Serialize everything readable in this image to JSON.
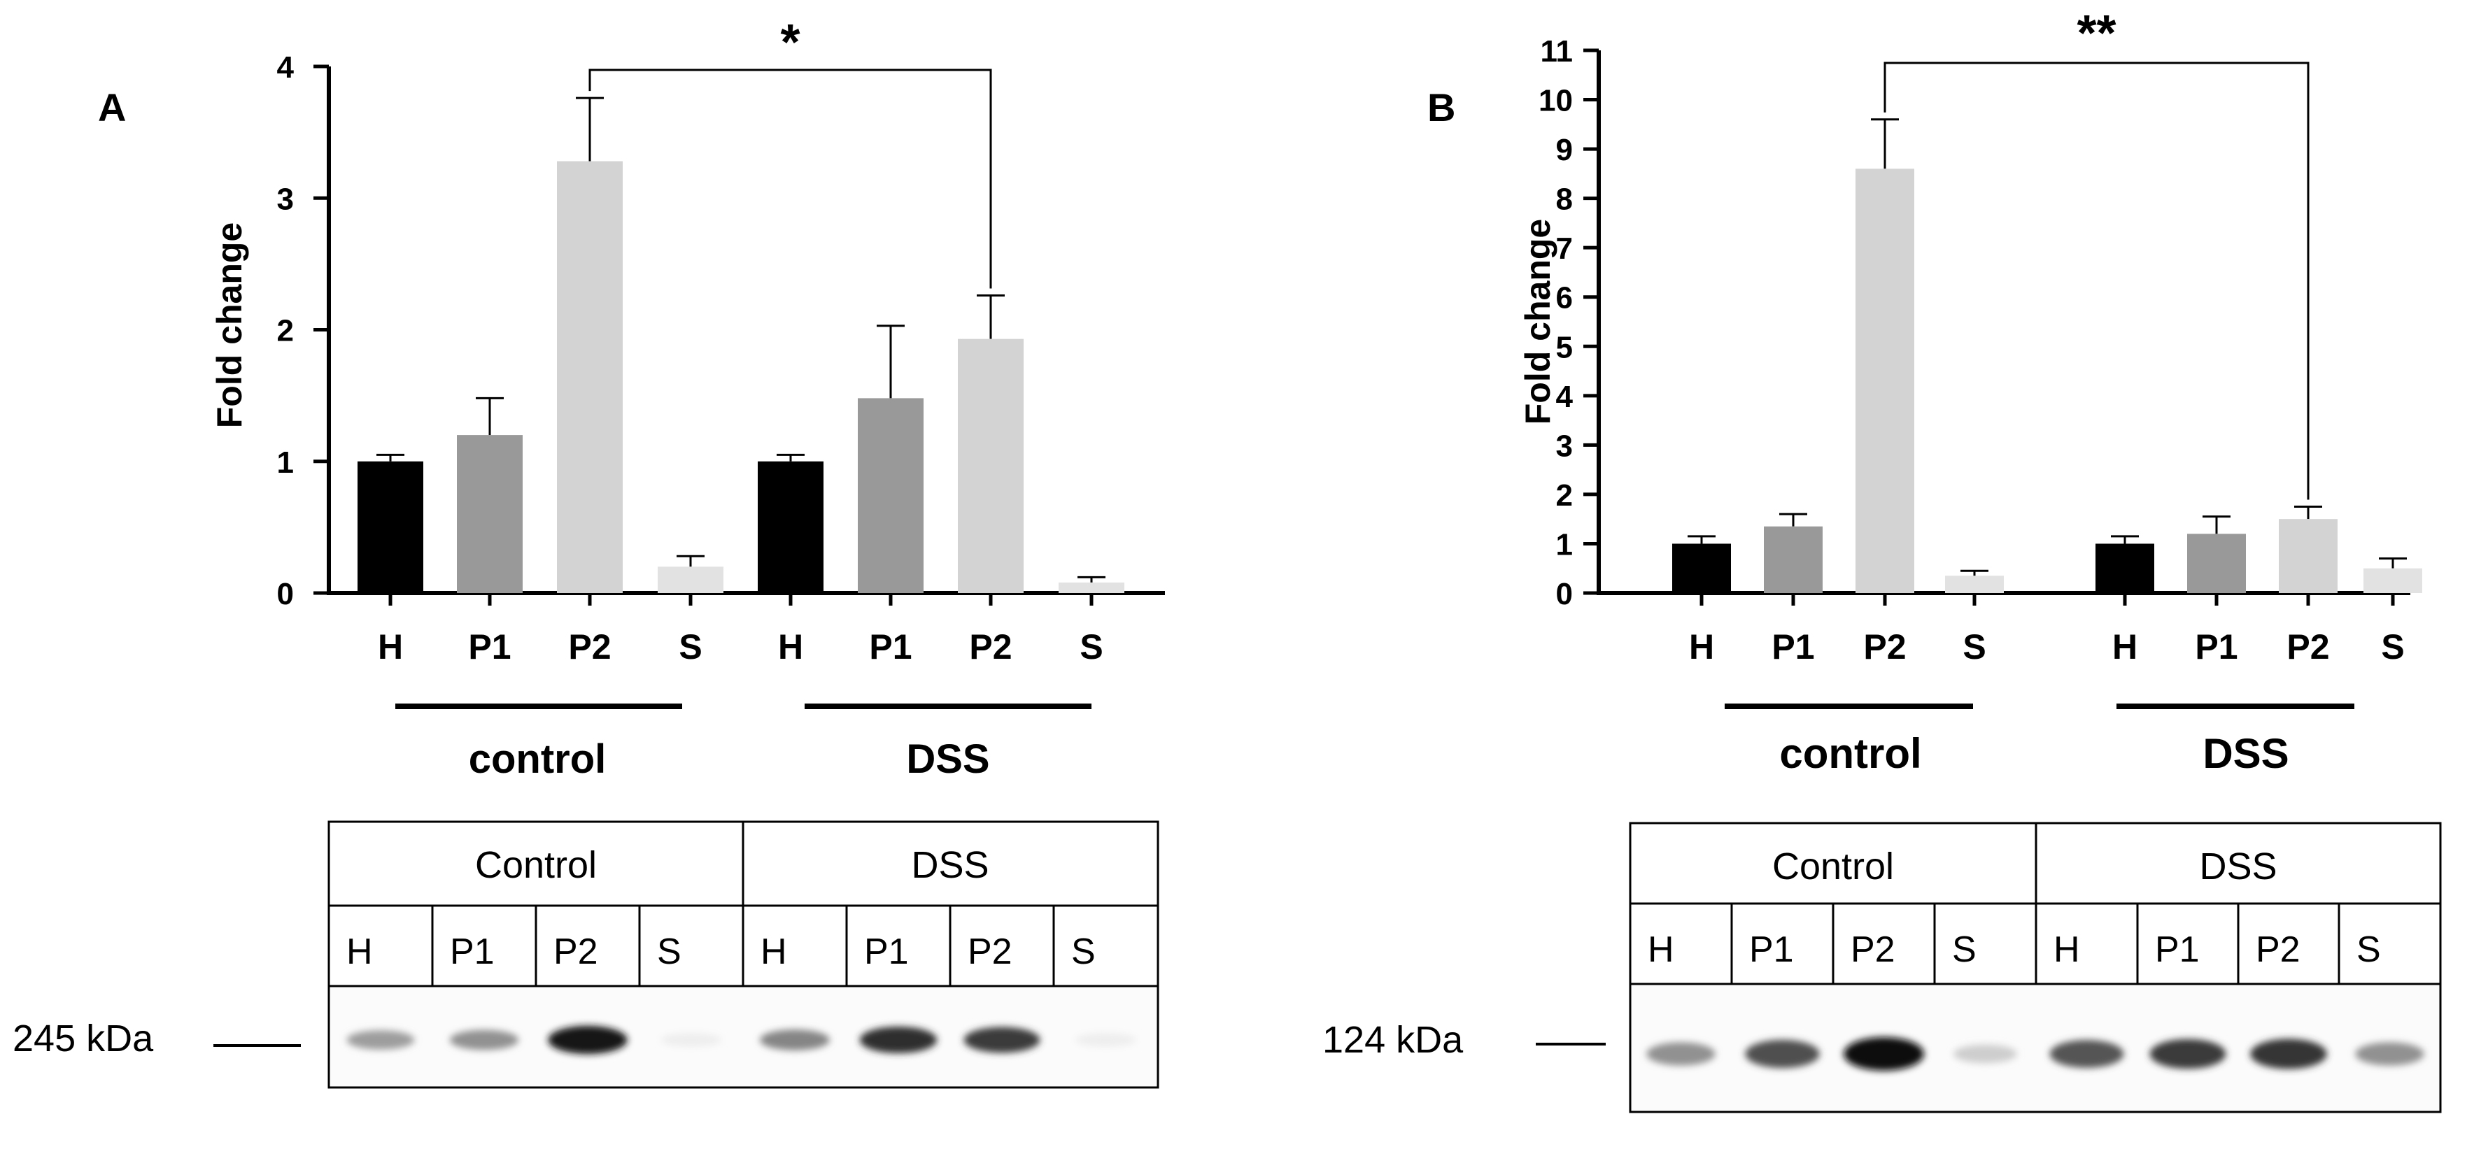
{
  "chart_data": [
    {
      "type": "bar",
      "panel_label": "A",
      "ylabel": "Fold change",
      "ylim": [
        0,
        4
      ],
      "yticks": [
        "0",
        "1",
        "2",
        "3",
        "4"
      ],
      "categories": [
        "H",
        "P1",
        "P2",
        "S",
        "H",
        "P1",
        "P2",
        "S"
      ],
      "values": [
        1.0,
        1.2,
        3.28,
        0.2,
        1.0,
        1.48,
        1.93,
        0.08
      ],
      "errors": [
        0.05,
        0.28,
        0.48,
        0.08,
        0.05,
        0.55,
        0.33,
        0.04
      ],
      "bar_colors": [
        "#000000",
        "#999999",
        "#d3d3d3",
        "#e2e2e2",
        "#000000",
        "#999999",
        "#d3d3d3",
        "#e2e2e2"
      ],
      "groups": [
        "control",
        "DSS"
      ],
      "significance": {
        "label": "*",
        "from_index": 2,
        "to_index": 6
      },
      "grid": false,
      "blot": {
        "group_headers": [
          "Control",
          "DSS"
        ],
        "lanes": [
          "H",
          "P1",
          "P2",
          "S",
          "H",
          "P1",
          "P2",
          "S"
        ],
        "marker": "245 kDa",
        "band_intensity": [
          0.4,
          0.45,
          0.95,
          0.07,
          0.5,
          0.85,
          0.8,
          0.07
        ]
      }
    },
    {
      "type": "bar",
      "panel_label": "B",
      "ylabel": "Fold change",
      "ylim": [
        0,
        11
      ],
      "yticks": [
        "0",
        "1",
        "2",
        "3",
        "4",
        "5",
        "6",
        "7",
        "8",
        "9",
        "10",
        "11"
      ],
      "categories": [
        "H",
        "P1",
        "P2",
        "S",
        "H",
        "P1",
        "P2",
        "S"
      ],
      "values": [
        1.0,
        1.35,
        8.6,
        0.35,
        1.0,
        1.2,
        1.5,
        0.5
      ],
      "errors": [
        0.15,
        0.25,
        1.0,
        0.1,
        0.15,
        0.35,
        0.25,
        0.2
      ],
      "bar_colors": [
        "#000000",
        "#999999",
        "#d3d3d3",
        "#e2e2e2",
        "#000000",
        "#999999",
        "#d3d3d3",
        "#e2e2e2"
      ],
      "groups": [
        "control",
        "DSS"
      ],
      "significance": {
        "label": "**",
        "from_index": 2,
        "to_index": 6
      },
      "grid": false,
      "blot": {
        "group_headers": [
          "Control",
          "DSS"
        ],
        "lanes": [
          "H",
          "P1",
          "P2",
          "S",
          "H",
          "P1",
          "P2",
          "S"
        ],
        "marker": "124 kDa",
        "band_intensity": [
          0.45,
          0.72,
          1.0,
          0.2,
          0.7,
          0.8,
          0.82,
          0.45
        ]
      }
    }
  ]
}
